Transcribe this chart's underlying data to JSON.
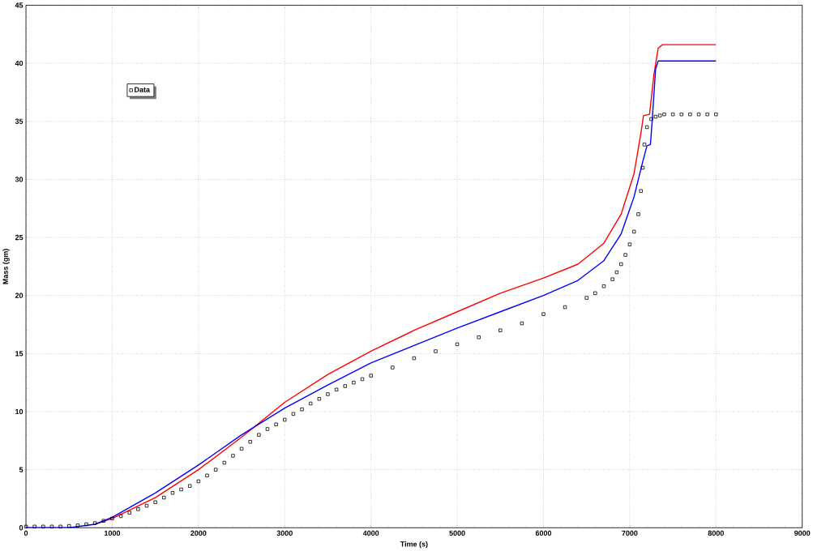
{
  "chart_data": {
    "type": "line",
    "xlabel": "Time (s)",
    "ylabel": "Mass (gm)",
    "xlim": [
      0,
      9000
    ],
    "ylim": [
      0,
      45
    ],
    "xticks": [
      0,
      1000,
      2000,
      3000,
      4000,
      5000,
      6000,
      7000,
      8000,
      9000
    ],
    "yticks": [
      0,
      5,
      10,
      15,
      20,
      25,
      30,
      35,
      40,
      45
    ],
    "grid": true,
    "legend": "top left",
    "series": [
      {
        "color": "#ff0000",
        "x": [
          800,
          1000,
          1500,
          2000,
          2500,
          3000,
          3500,
          4000,
          4500,
          5000,
          5500,
          6000,
          6400,
          6700,
          6900,
          7050,
          7130,
          7160,
          7230,
          7280,
          7330,
          7380,
          8000
        ],
        "values": [
          0.3,
          0.8,
          2.6,
          5.0,
          7.8,
          10.8,
          13.2,
          15.2,
          17.0,
          18.6,
          20.2,
          21.5,
          22.7,
          24.5,
          27,
          30.5,
          34,
          35.5,
          35.6,
          39,
          41.3,
          41.6,
          41.6
        ]
      },
      {
        "color": "#0000ff",
        "x": [
          0,
          500,
          800,
          1000,
          1500,
          2000,
          2500,
          3000,
          3500,
          4000,
          4500,
          5000,
          5500,
          6000,
          6400,
          6700,
          6900,
          7050,
          7150,
          7200,
          7240,
          7260,
          7300,
          7330,
          8000
        ],
        "values": [
          0,
          0,
          0.3,
          0.9,
          3.0,
          5.4,
          8.0,
          10.3,
          12.3,
          14.2,
          15.7,
          17.2,
          18.6,
          20.0,
          21.3,
          23.0,
          25.3,
          28.5,
          31.5,
          32.9,
          33.0,
          35,
          39.5,
          40.2,
          40.2
        ]
      },
      {
        "name": "Data",
        "type": "scatter",
        "marker": "square",
        "color": "#000000",
        "x": [
          0,
          100,
          200,
          300,
          400,
          500,
          600,
          700,
          800,
          900,
          1000,
          1100,
          1200,
          1300,
          1400,
          1500,
          1600,
          1700,
          1800,
          1900,
          2000,
          2100,
          2200,
          2300,
          2400,
          2500,
          2600,
          2700,
          2800,
          2900,
          3000,
          3100,
          3200,
          3300,
          3400,
          3500,
          3600,
          3700,
          3800,
          3900,
          4000,
          4250,
          4500,
          4750,
          5000,
          5250,
          5500,
          5750,
          6000,
          6250,
          6500,
          6600,
          6700,
          6800,
          6850,
          6900,
          6950,
          7000,
          7050,
          7100,
          7130,
          7150,
          7170,
          7200,
          7250,
          7300,
          7350,
          7400,
          7500,
          7600,
          7700,
          7800,
          7900,
          8000
        ],
        "values": [
          0.1,
          0.1,
          0.1,
          0.1,
          0.1,
          0.15,
          0.2,
          0.3,
          0.4,
          0.6,
          0.8,
          1.0,
          1.3,
          1.6,
          1.9,
          2.2,
          2.6,
          3.0,
          3.3,
          3.6,
          4.0,
          4.5,
          5.0,
          5.6,
          6.2,
          6.8,
          7.4,
          8.0,
          8.5,
          8.9,
          9.3,
          9.8,
          10.2,
          10.7,
          11.1,
          11.5,
          11.9,
          12.2,
          12.5,
          12.8,
          13.1,
          13.8,
          14.6,
          15.2,
          15.8,
          16.4,
          17.0,
          17.6,
          18.4,
          19.0,
          19.8,
          20.2,
          20.8,
          21.4,
          22.0,
          22.7,
          23.5,
          24.4,
          25.5,
          27.0,
          29,
          31,
          33,
          34.5,
          35.2,
          35.4,
          35.5,
          35.6,
          35.6,
          35.6,
          35.6,
          35.6,
          35.6,
          35.6
        ]
      }
    ]
  }
}
